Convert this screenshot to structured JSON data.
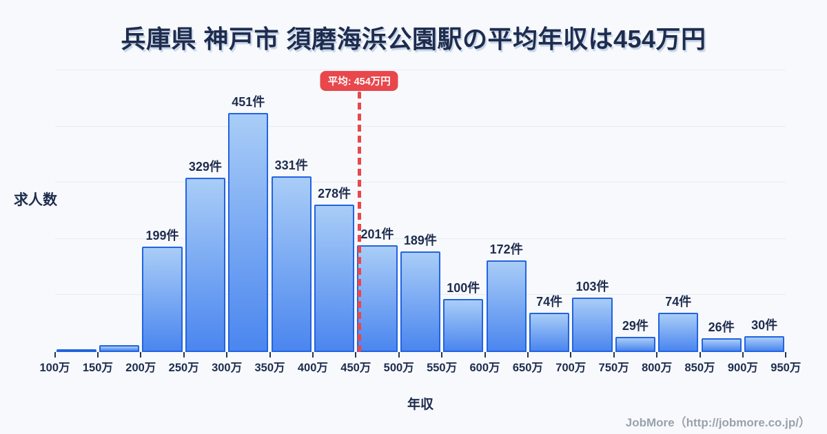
{
  "page": {
    "title": "兵庫県 神戸市 須磨海浜公園駅の平均年収は454万円",
    "footer_credit": "JobMore（http://jobmore.co.jp/）"
  },
  "chart_data": {
    "type": "bar",
    "title": "兵庫県 神戸市 須磨海浜公園駅の平均年収は454万円",
    "xlabel": "年収",
    "ylabel": "求人数",
    "unit_suffix": "件",
    "bin_edge_labels": [
      "100万",
      "150万",
      "200万",
      "250万",
      "300万",
      "350万",
      "400万",
      "450万",
      "500万",
      "550万",
      "600万",
      "650万",
      "700万",
      "750万",
      "800万",
      "850万",
      "900万",
      "950万"
    ],
    "values": [
      3,
      13,
      199,
      329,
      451,
      331,
      278,
      201,
      189,
      100,
      172,
      74,
      103,
      29,
      74,
      26,
      30
    ],
    "bar_labels": [
      "",
      "",
      "199件",
      "329件",
      "451件",
      "331件",
      "278件",
      "201件",
      "189件",
      "100件",
      "172件",
      "74件",
      "103件",
      "29件",
      "74件",
      "26件",
      "30件"
    ],
    "x_axis_range_value": [
      100,
      950
    ],
    "ylim": [
      0,
      530
    ],
    "grid": true,
    "legend": "none",
    "average": {
      "label": "平均: 454万円",
      "value": 454
    },
    "colors": {
      "background": "#f7f9fc",
      "text": "#1e2c4e",
      "title_shadow": "rgba(168,188,218,0.6)",
      "bar_border": "#2263e0",
      "bar_gradient_top": "#a9cdf7",
      "bar_gradient_bottom": "#4b86ef",
      "average_red": "#e8474c",
      "gridline": "#e7ebf1",
      "tick": "#253652",
      "footer_text": "#9aa1ac"
    }
  }
}
